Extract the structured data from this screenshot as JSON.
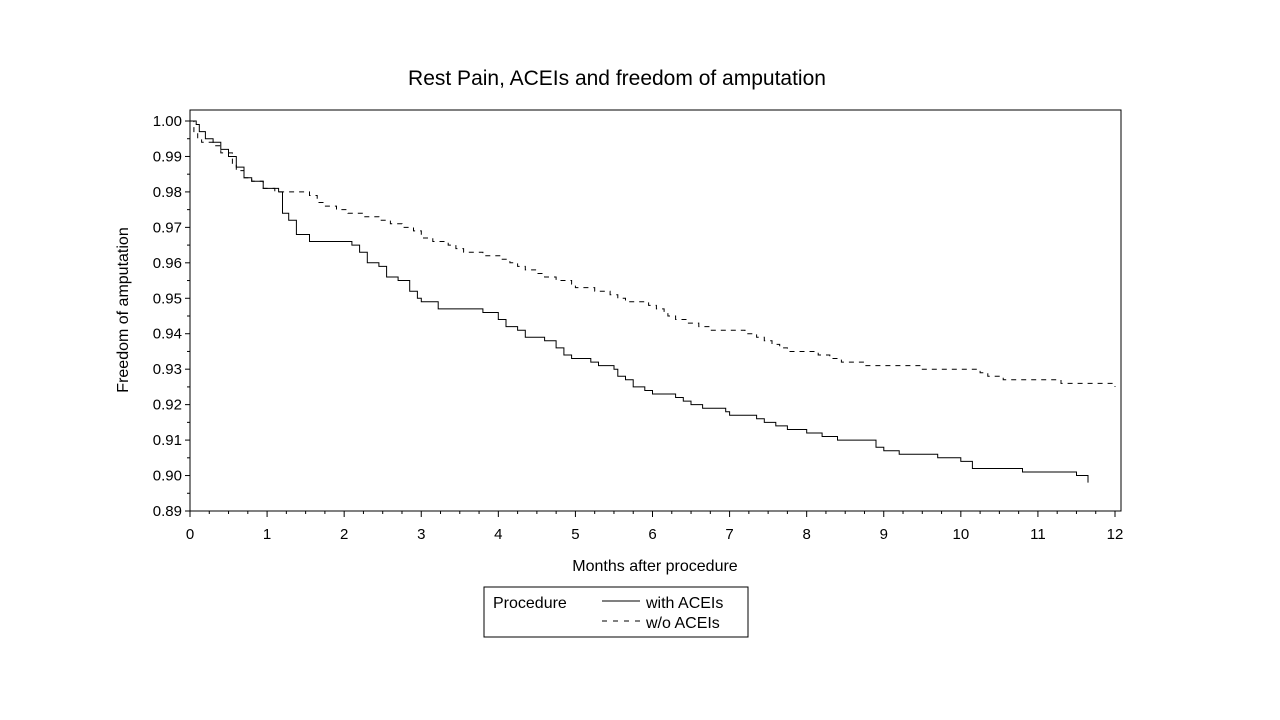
{
  "chart_data": {
    "type": "line",
    "title": "Rest Pain, ACEIs and freedom of amputation",
    "xlabel": "Months after procedure",
    "ylabel": "Freedom of amputation",
    "xlim": [
      0,
      12
    ],
    "ylim": [
      0.89,
      1.0
    ],
    "x_ticks": [
      "0",
      "1",
      "2",
      "3",
      "4",
      "5",
      "6",
      "7",
      "8",
      "9",
      "10",
      "11",
      "12"
    ],
    "y_ticks": [
      "0.89",
      "0.90",
      "0.91",
      "0.92",
      "0.93",
      "0.94",
      "0.95",
      "0.96",
      "0.97",
      "0.98",
      "0.99",
      "1.00"
    ],
    "grid": false,
    "step": true,
    "legend": {
      "position": "bottom",
      "title": "Procedure",
      "entries": [
        {
          "label": "with ACEIs",
          "style": "solid"
        },
        {
          "label": "w/o ACEIs",
          "style": "dashed"
        }
      ]
    },
    "series": [
      {
        "name": "with ACEIs",
        "style": "solid",
        "color": "#000000",
        "points": [
          [
            0,
            1.0
          ],
          [
            0.08,
            0.999
          ],
          [
            0.12,
            0.997
          ],
          [
            0.2,
            0.995
          ],
          [
            0.3,
            0.994
          ],
          [
            0.4,
            0.992
          ],
          [
            0.5,
            0.99
          ],
          [
            0.6,
            0.987
          ],
          [
            0.7,
            0.984
          ],
          [
            0.8,
            0.983
          ],
          [
            0.95,
            0.981
          ],
          [
            1.15,
            0.98
          ],
          [
            1.2,
            0.974
          ],
          [
            1.28,
            0.972
          ],
          [
            1.38,
            0.968
          ],
          [
            1.55,
            0.966
          ],
          [
            1.9,
            0.966
          ],
          [
            2.1,
            0.965
          ],
          [
            2.2,
            0.963
          ],
          [
            2.3,
            0.96
          ],
          [
            2.45,
            0.959
          ],
          [
            2.55,
            0.956
          ],
          [
            2.7,
            0.955
          ],
          [
            2.85,
            0.952
          ],
          [
            2.95,
            0.95
          ],
          [
            3.0,
            0.949
          ],
          [
            3.22,
            0.947
          ],
          [
            3.5,
            0.947
          ],
          [
            3.8,
            0.946
          ],
          [
            4.0,
            0.944
          ],
          [
            4.1,
            0.942
          ],
          [
            4.25,
            0.941
          ],
          [
            4.35,
            0.939
          ],
          [
            4.6,
            0.938
          ],
          [
            4.75,
            0.936
          ],
          [
            4.85,
            0.934
          ],
          [
            4.95,
            0.933
          ],
          [
            5.2,
            0.932
          ],
          [
            5.3,
            0.931
          ],
          [
            5.5,
            0.93
          ],
          [
            5.55,
            0.928
          ],
          [
            5.65,
            0.927
          ],
          [
            5.75,
            0.925
          ],
          [
            5.9,
            0.924
          ],
          [
            6.0,
            0.923
          ],
          [
            6.3,
            0.922
          ],
          [
            6.4,
            0.921
          ],
          [
            6.5,
            0.92
          ],
          [
            6.65,
            0.919
          ],
          [
            6.95,
            0.918
          ],
          [
            7.0,
            0.917
          ],
          [
            7.35,
            0.916
          ],
          [
            7.45,
            0.915
          ],
          [
            7.6,
            0.914
          ],
          [
            7.75,
            0.913
          ],
          [
            8.0,
            0.912
          ],
          [
            8.2,
            0.911
          ],
          [
            8.4,
            0.91
          ],
          [
            8.9,
            0.908
          ],
          [
            9.0,
            0.907
          ],
          [
            9.2,
            0.906
          ],
          [
            9.7,
            0.905
          ],
          [
            10.0,
            0.904
          ],
          [
            10.15,
            0.902
          ],
          [
            10.8,
            0.901
          ],
          [
            11.5,
            0.9
          ],
          [
            11.65,
            0.899
          ],
          [
            11.65,
            0.898
          ]
        ]
      },
      {
        "name": "w/o ACEIs",
        "style": "dashed",
        "color": "#000000",
        "points": [
          [
            0,
            1.0
          ],
          [
            0.05,
            0.997
          ],
          [
            0.1,
            0.995
          ],
          [
            0.15,
            0.994
          ],
          [
            0.3,
            0.993
          ],
          [
            0.4,
            0.991
          ],
          [
            0.55,
            0.988
          ],
          [
            0.6,
            0.986
          ],
          [
            0.7,
            0.984
          ],
          [
            0.8,
            0.983
          ],
          [
            0.95,
            0.981
          ],
          [
            1.1,
            0.98
          ],
          [
            1.4,
            0.98
          ],
          [
            1.55,
            0.979
          ],
          [
            1.65,
            0.977
          ],
          [
            1.75,
            0.976
          ],
          [
            1.9,
            0.975
          ],
          [
            2.05,
            0.974
          ],
          [
            2.25,
            0.973
          ],
          [
            2.45,
            0.972
          ],
          [
            2.6,
            0.971
          ],
          [
            2.75,
            0.97
          ],
          [
            2.9,
            0.969
          ],
          [
            3.0,
            0.967
          ],
          [
            3.15,
            0.966
          ],
          [
            3.35,
            0.965
          ],
          [
            3.45,
            0.964
          ],
          [
            3.55,
            0.963
          ],
          [
            3.8,
            0.962
          ],
          [
            4.05,
            0.961
          ],
          [
            4.15,
            0.96
          ],
          [
            4.25,
            0.959
          ],
          [
            4.35,
            0.958
          ],
          [
            4.5,
            0.957
          ],
          [
            4.6,
            0.956
          ],
          [
            4.75,
            0.955
          ],
          [
            4.95,
            0.954
          ],
          [
            5.0,
            0.953
          ],
          [
            5.25,
            0.952
          ],
          [
            5.45,
            0.951
          ],
          [
            5.55,
            0.95
          ],
          [
            5.65,
            0.949
          ],
          [
            5.95,
            0.948
          ],
          [
            6.05,
            0.947
          ],
          [
            6.15,
            0.946
          ],
          [
            6.2,
            0.945
          ],
          [
            6.3,
            0.944
          ],
          [
            6.45,
            0.943
          ],
          [
            6.6,
            0.942
          ],
          [
            6.75,
            0.941
          ],
          [
            7.1,
            0.941
          ],
          [
            7.2,
            0.94
          ],
          [
            7.35,
            0.939
          ],
          [
            7.45,
            0.938
          ],
          [
            7.55,
            0.937
          ],
          [
            7.65,
            0.936
          ],
          [
            7.75,
            0.935
          ],
          [
            8.05,
            0.935
          ],
          [
            8.15,
            0.934
          ],
          [
            8.3,
            0.933
          ],
          [
            8.45,
            0.932
          ],
          [
            8.75,
            0.931
          ],
          [
            9.15,
            0.931
          ],
          [
            9.5,
            0.93
          ],
          [
            10.05,
            0.93
          ],
          [
            10.25,
            0.929
          ],
          [
            10.35,
            0.928
          ],
          [
            10.55,
            0.927
          ],
          [
            11.0,
            0.927
          ],
          [
            11.3,
            0.926
          ],
          [
            11.9,
            0.926
          ],
          [
            12.0,
            0.925
          ]
        ]
      }
    ]
  }
}
